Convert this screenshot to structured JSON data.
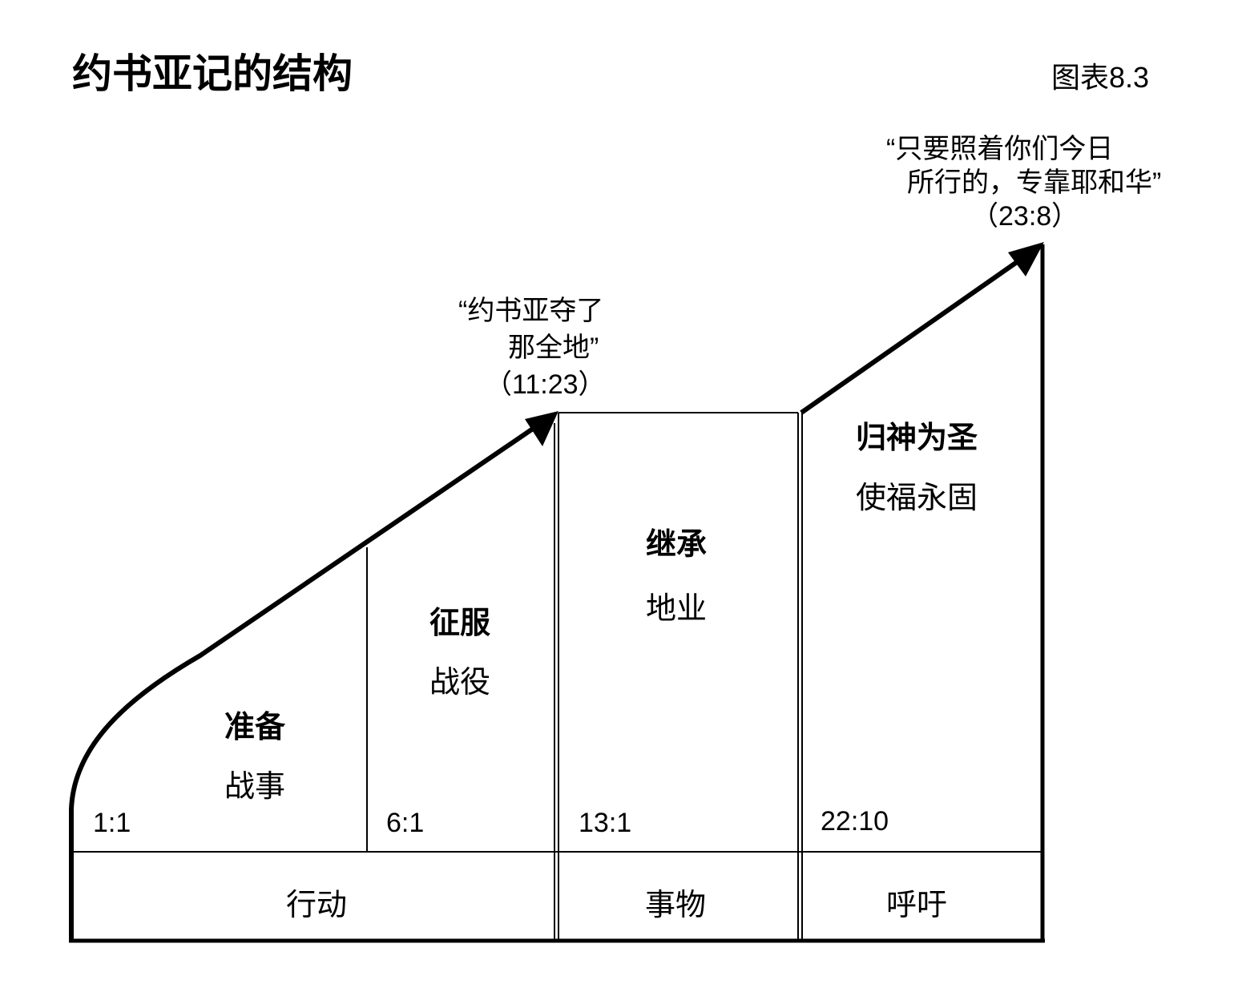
{
  "title": "约书亚记的结构",
  "figure_label": "图表8.3",
  "quotes": [
    {
      "line1": "“约书亚夺了",
      "line2": "那全地”",
      "ref": "（11:23）"
    },
    {
      "line1": "“只要照着你们今日",
      "line2": "所行的，专靠耶和华”",
      "ref": "（23:8）"
    }
  ],
  "sections": [
    {
      "heading": "准备",
      "sub": "战事",
      "ref": "1:1"
    },
    {
      "heading": "征服",
      "sub": "战役",
      "ref": "6:1"
    },
    {
      "heading": "继承",
      "sub": "地业",
      "ref": "13:1"
    },
    {
      "heading": "归神为圣",
      "sub": "使福永固",
      "ref": "22:10"
    }
  ],
  "bottom": [
    "行动",
    "事物",
    "呼吁"
  ]
}
